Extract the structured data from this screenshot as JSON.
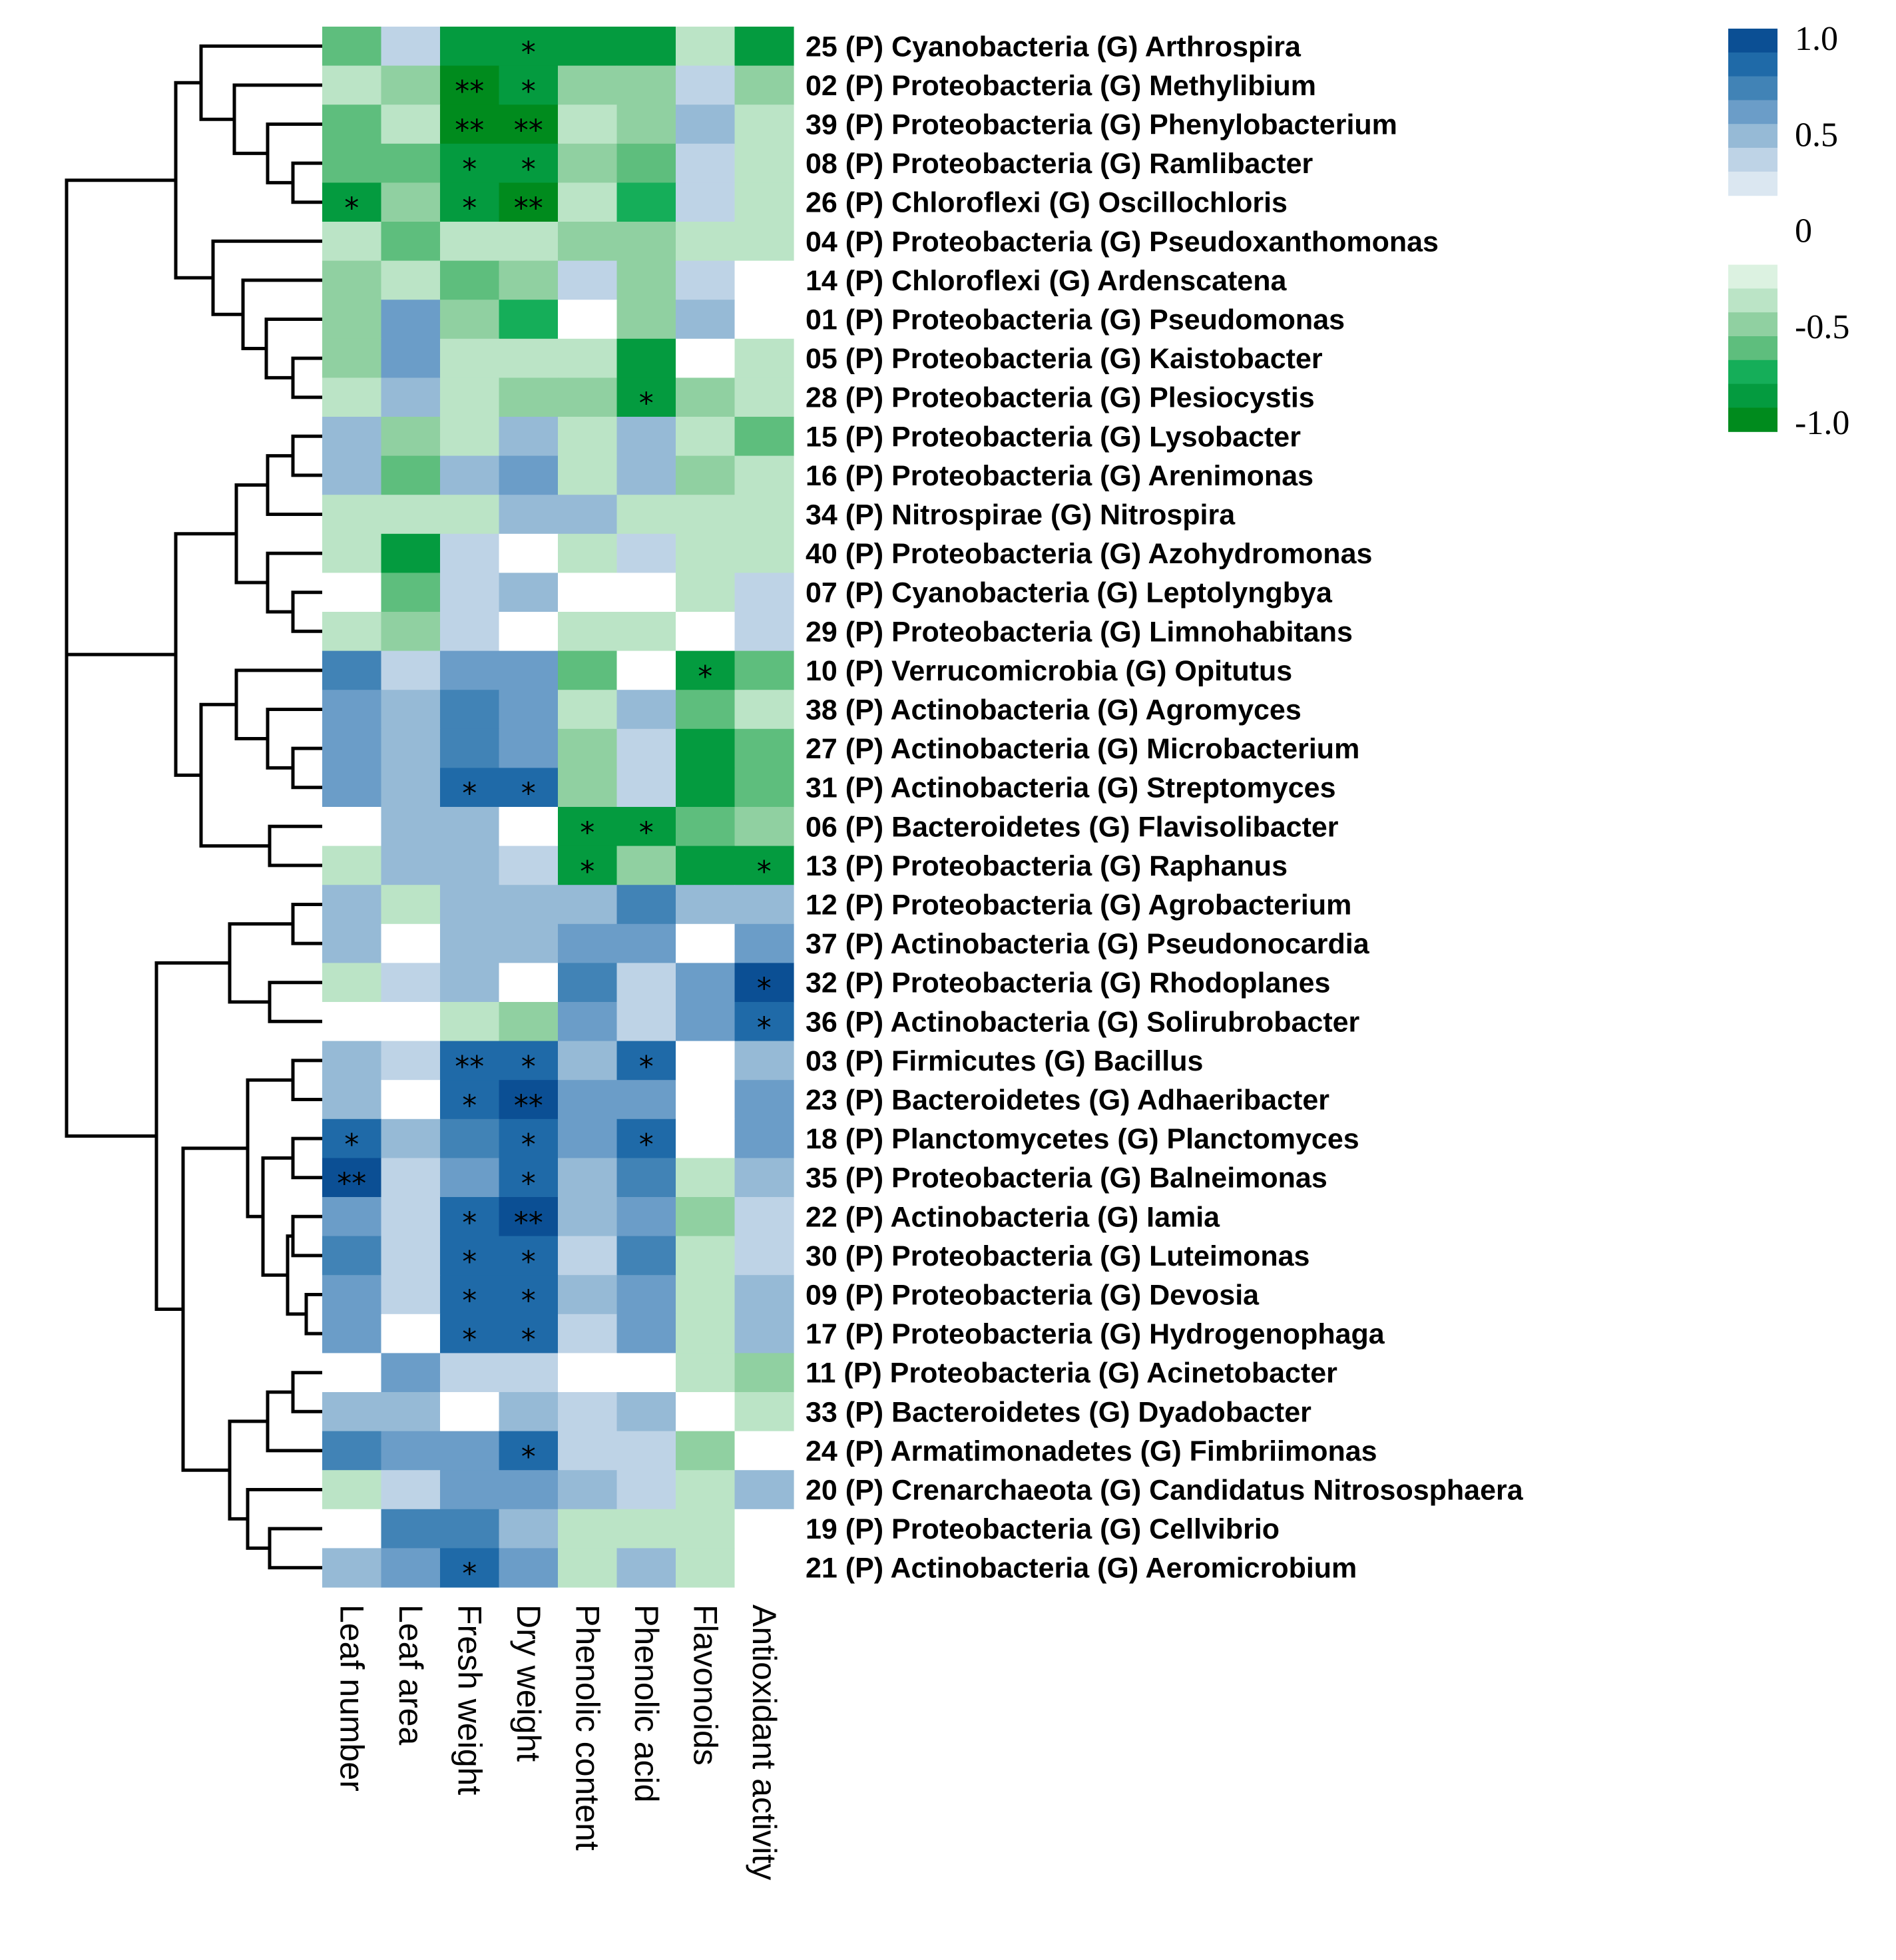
{
  "chart_data": {
    "type": "heatmap",
    "title": "",
    "columns": [
      "Leaf number",
      "Leaf area",
      "Fresh weight",
      "Dry weight",
      "Phenolic content",
      "Phenolic acid",
      "Flavonoids",
      "Antioxidant activity"
    ],
    "rows": [
      "25 (P) Cyanobacteria (G) Arthrospira",
      "02 (P) Proteobacteria (G) Methylibium",
      "39 (P) Proteobacteria (G) Phenylobacterium",
      "08 (P) Proteobacteria (G) Ramlibacter",
      "26 (P) Chloroflexi (G) Oscillochloris",
      "04 (P) Proteobacteria (G) Pseudoxanthomonas",
      "14 (P) Chloroflexi (G) Ardenscatena",
      "01 (P) Proteobacteria (G) Pseudomonas",
      "05 (P) Proteobacteria (G) Kaistobacter",
      "28 (P) Proteobacteria (G) Plesiocystis",
      "15 (P) Proteobacteria (G) Lysobacter",
      "16 (P) Proteobacteria (G) Arenimonas",
      "34 (P) Nitrospirae (G) Nitrospira",
      "40 (P) Proteobacteria (G) Azohydromonas",
      "07 (P) Cyanobacteria (G) Leptolyngbya",
      "29 (P) Proteobacteria (G) Limnohabitans",
      "10 (P) Verrucomicrobia (G) Opitutus",
      "38 (P) Actinobacteria (G) Agromyces",
      "27 (P) Actinobacteria (G) Microbacterium",
      "31 (P) Actinobacteria (G) Streptomyces",
      "06 (P) Bacteroidetes (G) Flavisolibacter",
      "13 (P) Proteobacteria (G) Raphanus",
      "12 (P) Proteobacteria (G) Agrobacterium",
      "37 (P) Actinobacteria (G) Pseudonocardia",
      "32 (P) Proteobacteria (G) Rhodoplanes",
      "36 (P) Actinobacteria (G) Solirubrobacter",
      "03 (P) Firmicutes (G) Bacillus",
      "23 (P) Bacteroidetes (G) Adhaeribacter",
      "18 (P) Planctomycetes (G) Planctomyces",
      "35 (P) Proteobacteria (G) Balneimonas",
      "22 (P) Actinobacteria (G) Iamia",
      "30 (P) Proteobacteria (G) Luteimonas",
      "09 (P) Proteobacteria (G) Devosia",
      "17 (P) Proteobacteria (G) Hydrogenophaga",
      "11 (P) Proteobacteria (G) Acinetobacter",
      "33 (P) Bacteroidetes (G) Dyadobacter",
      "24 (P) Armatimonadetes (G) Fimbriimonas",
      "20 (P) Crenarchaeota (G) Candidatus Nitrososphaera",
      "19 (P) Proteobacteria (G) Cellvibrio",
      "21 (P) Actinobacteria (G) Aeromicrobium"
    ],
    "values": [
      [
        -0.55,
        0.15,
        -0.75,
        -0.75,
        -0.75,
        -0.75,
        -0.15,
        -0.75
      ],
      [
        -0.25,
        -0.4,
        -0.95,
        -0.8,
        -0.4,
        -0.4,
        0.15,
        -0.4
      ],
      [
        -0.55,
        -0.25,
        -0.95,
        -0.95,
        -0.15,
        -0.4,
        0.4,
        -0.15
      ],
      [
        -0.55,
        -0.55,
        -0.85,
        -0.85,
        -0.4,
        -0.55,
        0.15,
        -0.15
      ],
      [
        -0.85,
        -0.4,
        -0.85,
        -0.95,
        -0.25,
        -0.7,
        0.15,
        -0.15
      ],
      [
        -0.25,
        -0.55,
        -0.25,
        -0.25,
        -0.4,
        -0.4,
        -0.15,
        -0.15
      ],
      [
        -0.4,
        -0.15,
        -0.55,
        -0.4,
        0.15,
        -0.4,
        0.15,
        0.0
      ],
      [
        -0.4,
        0.55,
        -0.4,
        -0.7,
        0.0,
        -0.4,
        0.3,
        0.0
      ],
      [
        -0.4,
        0.55,
        -0.15,
        -0.25,
        -0.15,
        -0.85,
        0.0,
        -0.15
      ],
      [
        -0.15,
        0.3,
        -0.25,
        -0.4,
        -0.4,
        -0.85,
        -0.4,
        -0.15
      ],
      [
        0.4,
        -0.4,
        -0.15,
        0.3,
        -0.25,
        0.4,
        -0.25,
        -0.55
      ],
      [
        0.4,
        -0.55,
        0.3,
        0.55,
        -0.15,
        0.3,
        -0.4,
        -0.15
      ],
      [
        -0.15,
        -0.25,
        -0.15,
        0.3,
        0.3,
        -0.15,
        -0.25,
        -0.15
      ],
      [
        -0.25,
        -0.75,
        0.15,
        0.0,
        -0.25,
        0.15,
        -0.15,
        -0.25
      ],
      [
        0.0,
        -0.55,
        0.15,
        0.3,
        0.0,
        0.0,
        -0.25,
        0.15
      ],
      [
        -0.15,
        -0.4,
        0.15,
        0.0,
        -0.15,
        -0.15,
        0.0,
        0.15
      ],
      [
        0.7,
        0.15,
        0.55,
        0.55,
        -0.55,
        0.0,
        -0.8,
        -0.55
      ],
      [
        0.55,
        0.4,
        0.7,
        0.55,
        -0.25,
        0.3,
        -0.55,
        -0.25
      ],
      [
        0.55,
        0.4,
        0.7,
        0.55,
        -0.4,
        0.15,
        -0.75,
        -0.55
      ],
      [
        0.55,
        0.3,
        0.85,
        0.85,
        -0.4,
        0.15,
        -0.75,
        -0.55
      ],
      [
        0.0,
        0.4,
        0.3,
        0.0,
        -0.85,
        -0.85,
        -0.55,
        -0.4
      ],
      [
        -0.15,
        0.4,
        0.4,
        0.15,
        -0.85,
        -0.4,
        -0.75,
        -0.85
      ],
      [
        0.4,
        -0.25,
        0.3,
        0.3,
        0.3,
        0.7,
        0.3,
        0.4
      ],
      [
        0.4,
        0.0,
        0.4,
        0.4,
        0.55,
        0.55,
        0.0,
        0.55
      ],
      [
        -0.25,
        0.15,
        0.3,
        0.0,
        0.7,
        0.15,
        0.55,
        0.95
      ],
      [
        0.0,
        0.0,
        -0.15,
        -0.4,
        0.55,
        0.15,
        0.55,
        0.85
      ],
      [
        0.4,
        0.15,
        0.85,
        0.85,
        0.4,
        0.85,
        0.0,
        0.4
      ],
      [
        0.4,
        0.0,
        0.85,
        0.95,
        0.55,
        0.55,
        0.0,
        0.55
      ],
      [
        0.85,
        0.3,
        0.7,
        0.85,
        0.55,
        0.85,
        0.0,
        0.55
      ],
      [
        0.95,
        0.15,
        0.55,
        0.85,
        0.3,
        0.7,
        -0.15,
        0.4
      ],
      [
        0.55,
        0.15,
        0.85,
        0.95,
        0.3,
        0.55,
        -0.4,
        0.15
      ],
      [
        0.7,
        0.15,
        0.85,
        0.85,
        0.15,
        0.7,
        -0.15,
        0.15
      ],
      [
        0.55,
        0.15,
        0.85,
        0.85,
        0.3,
        0.55,
        -0.25,
        0.3
      ],
      [
        0.55,
        0.0,
        0.85,
        0.85,
        0.15,
        0.55,
        -0.15,
        0.3
      ],
      [
        0.0,
        0.55,
        0.15,
        0.15,
        0.0,
        0.0,
        -0.15,
        -0.4
      ],
      [
        0.4,
        0.3,
        0.0,
        0.3,
        0.15,
        0.4,
        0.0,
        -0.15
      ],
      [
        0.7,
        0.55,
        0.55,
        0.85,
        0.15,
        0.15,
        -0.4,
        0.0
      ],
      [
        -0.15,
        0.15,
        0.55,
        0.55,
        0.4,
        0.15,
        -0.15,
        0.3
      ],
      [
        0.0,
        0.7,
        0.7,
        0.3,
        -0.15,
        -0.25,
        -0.25,
        0.0
      ],
      [
        0.3,
        0.55,
        0.85,
        0.55,
        -0.15,
        0.3,
        -0.25,
        0.0
      ]
    ],
    "significance": [
      [
        "",
        "",
        "",
        "*",
        "",
        "",
        "",
        ""
      ],
      [
        "",
        "",
        "**",
        "*",
        "",
        "",
        "",
        ""
      ],
      [
        "",
        "",
        "**",
        "**",
        "",
        "",
        "",
        ""
      ],
      [
        "",
        "",
        "*",
        "*",
        "",
        "",
        "",
        ""
      ],
      [
        "*",
        "",
        "*",
        "**",
        "",
        "",
        "",
        ""
      ],
      [
        "",
        "",
        "",
        "",
        "",
        "",
        "",
        ""
      ],
      [
        "",
        "",
        "",
        "",
        "",
        "",
        "",
        ""
      ],
      [
        "",
        "",
        "",
        "",
        "",
        "",
        "",
        ""
      ],
      [
        "",
        "",
        "",
        "",
        "",
        "",
        "",
        ""
      ],
      [
        "",
        "",
        "",
        "",
        "",
        "*",
        "",
        ""
      ],
      [
        "",
        "",
        "",
        "",
        "",
        "",
        "",
        ""
      ],
      [
        "",
        "",
        "",
        "",
        "",
        "",
        "",
        ""
      ],
      [
        "",
        "",
        "",
        "",
        "",
        "",
        "",
        ""
      ],
      [
        "",
        "",
        "",
        "",
        "",
        "",
        "",
        ""
      ],
      [
        "",
        "",
        "",
        "",
        "",
        "",
        "",
        ""
      ],
      [
        "",
        "",
        "",
        "",
        "",
        "",
        "",
        ""
      ],
      [
        "",
        "",
        "",
        "",
        "",
        "",
        "*",
        ""
      ],
      [
        "",
        "",
        "",
        "",
        "",
        "",
        "",
        ""
      ],
      [
        "",
        "",
        "",
        "",
        "",
        "",
        "",
        ""
      ],
      [
        "",
        "",
        "*",
        "*",
        "",
        "",
        "",
        ""
      ],
      [
        "",
        "",
        "",
        "",
        "*",
        "*",
        "",
        ""
      ],
      [
        "",
        "",
        "",
        "",
        "*",
        "",
        "",
        "*"
      ],
      [
        "",
        "",
        "",
        "",
        "",
        "",
        "",
        ""
      ],
      [
        "",
        "",
        "",
        "",
        "",
        "",
        "",
        ""
      ],
      [
        "",
        "",
        "",
        "",
        "",
        "",
        "",
        "*"
      ],
      [
        "",
        "",
        "",
        "",
        "",
        "",
        "",
        "*"
      ],
      [
        "",
        "",
        "**",
        "*",
        "",
        "*",
        "",
        ""
      ],
      [
        "",
        "",
        "*",
        "**",
        "",
        "",
        "",
        ""
      ],
      [
        "*",
        "",
        "",
        "*",
        "",
        "*",
        "",
        ""
      ],
      [
        "**",
        "",
        "",
        "*",
        "",
        "",
        "",
        ""
      ],
      [
        "",
        "",
        "*",
        "**",
        "",
        "",
        "",
        ""
      ],
      [
        "",
        "",
        "*",
        "*",
        "",
        "",
        "",
        ""
      ],
      [
        "",
        "",
        "*",
        "*",
        "",
        "",
        "",
        ""
      ],
      [
        "",
        "",
        "*",
        "*",
        "",
        "",
        "",
        ""
      ],
      [
        "",
        "",
        "",
        "",
        "",
        "",
        "",
        ""
      ],
      [
        "",
        "",
        "",
        "",
        "",
        "",
        "",
        ""
      ],
      [
        "",
        "",
        "",
        "*",
        "",
        "",
        "",
        ""
      ],
      [
        "",
        "",
        "",
        "",
        "",
        "",
        "",
        ""
      ],
      [
        "",
        "",
        "",
        "",
        "",
        "",
        "",
        ""
      ],
      [
        "",
        "",
        "*",
        "",
        "",
        "",
        "",
        ""
      ]
    ],
    "legend": {
      "range": [
        -1.0,
        1.0
      ],
      "ticks": [
        "1.0",
        "0.5",
        "0",
        "-0.5",
        "-1.0"
      ],
      "tick_values": [
        1.0,
        0.5,
        0.0,
        -0.5,
        -1.0
      ],
      "positive_colors": [
        "#dbe7f1",
        "#bed3e6",
        "#96bad6",
        "#6b9dc8",
        "#4183b6",
        "#1f6aa8",
        "#0b4f94"
      ],
      "negative_colors": [
        "#dcf2e1",
        "#bbe4c6",
        "#90d0a1",
        "#5ebe7d",
        "#15ae59",
        "#049b3f",
        "#008b1d"
      ],
      "zero_color": "#ffffff",
      "position": "top-right"
    },
    "dendrogram": "hierarchical clustering of rows (left side)"
  }
}
